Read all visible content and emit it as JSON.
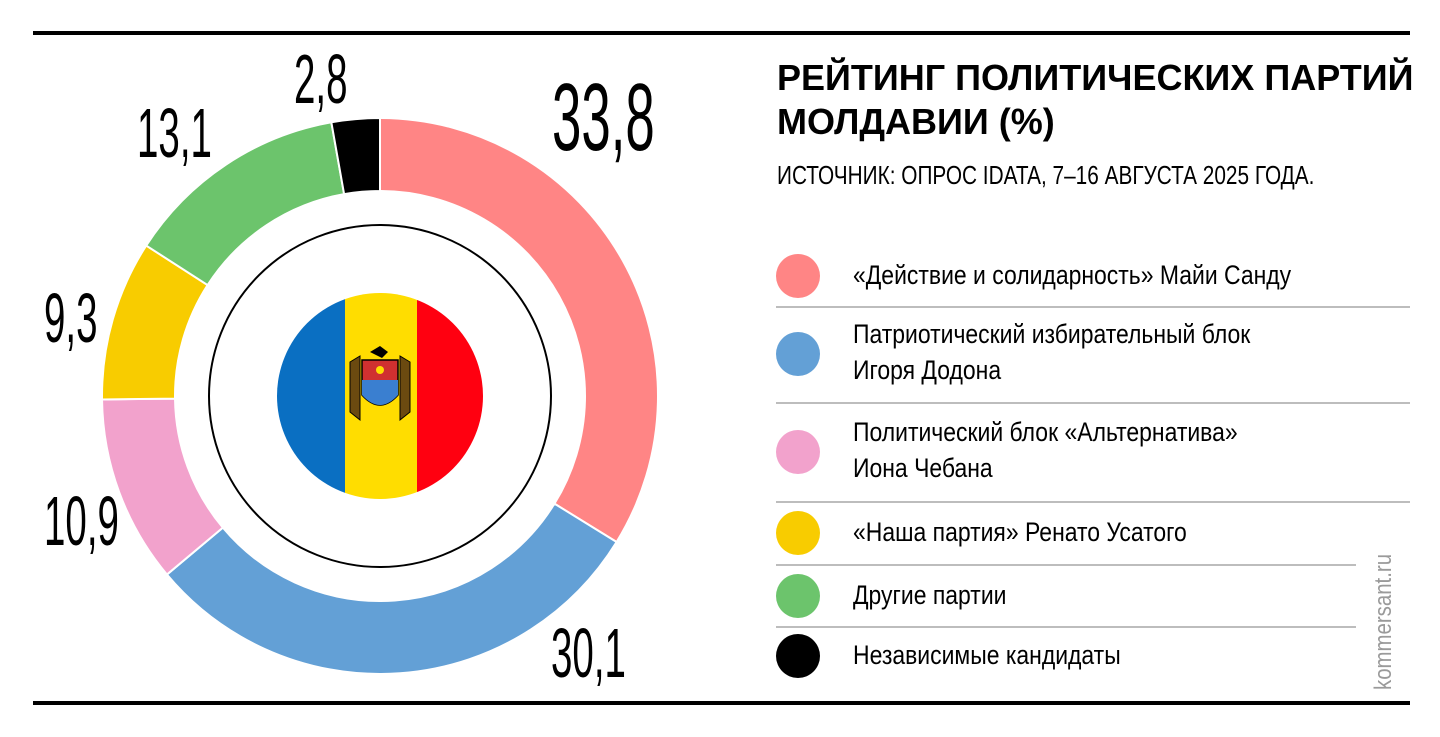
{
  "chart_data": {
    "type": "pie",
    "title": "РЕЙТИНГ ПОЛИТИЧЕСКИХ ПАРТИЙ МОЛДАВИИ (%)",
    "subtitle": "ИСТОЧНИК: ОПРОС IDATA, 7–16 АВГУСТА 2025 ГОДА.",
    "slices": [
      {
        "name": "«Действие и солидарность» Майи Санду",
        "value": 33.8,
        "label": "33,8",
        "color": "#ff8585"
      },
      {
        "name": "Патриотический избирательный блок Игоря Додона",
        "value": 30.1,
        "label": "30,1",
        "color": "#63a0d6"
      },
      {
        "name": "Политический блок «Альтернатива» Иона Чебана",
        "value": 10.9,
        "label": "10,9",
        "color": "#f2a2cc"
      },
      {
        "name": "«Наша партия» Ренато Усатого",
        "value": 9.3,
        "label": "9,3",
        "color": "#f8cc00"
      },
      {
        "name": "Другие партии",
        "value": 13.1,
        "label": "13,1",
        "color": "#6cc46c"
      },
      {
        "name": "Независимые кандидаты",
        "value": 2.8,
        "label": "2,8",
        "color": "#000000"
      }
    ],
    "legend_position": "right"
  },
  "legend": [
    {
      "line1": "«Действие и солидарность» Майи Санду",
      "line2": ""
    },
    {
      "line1": "Патриотический избирательный блок",
      "line2": "Игоря Додона"
    },
    {
      "line1": "Политический блок «Альтернатива»",
      "line2": "Иона Чебана"
    },
    {
      "line1": "«Наша партия» Ренато Усатого",
      "line2": ""
    },
    {
      "line1": "Другие партии",
      "line2": ""
    },
    {
      "line1": "Независимые кандидаты",
      "line2": ""
    }
  ],
  "brand": "kommersant.ru"
}
